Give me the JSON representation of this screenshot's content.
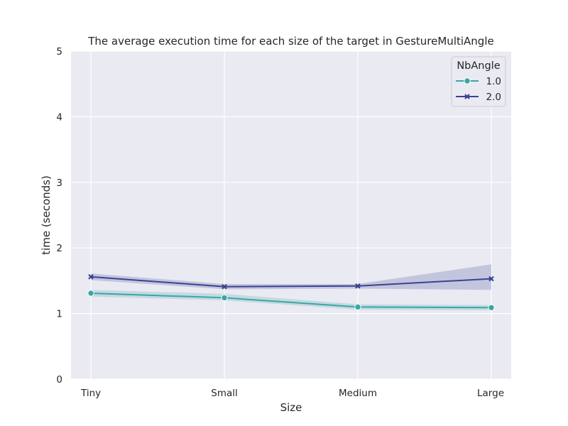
{
  "chart_data": {
    "type": "line",
    "title": "The average execution time for each size of the target in GestureMultiAngle",
    "xlabel": "Size",
    "ylabel": "time (seconds)",
    "categories": [
      "Tiny",
      "Small",
      "Medium",
      "Large"
    ],
    "ylim": [
      0,
      5
    ],
    "yticks": [
      "0",
      "1",
      "2",
      "3",
      "4",
      "5"
    ],
    "grid": true,
    "legend": {
      "title": "NbAngle",
      "placement": "top-right"
    },
    "series": [
      {
        "name": "1.0",
        "marker": "circle",
        "color": "#3ba6a4",
        "values": [
          1.31,
          1.24,
          1.1,
          1.09
        ],
        "ci_low": [
          1.26,
          1.2,
          1.06,
          1.05
        ],
        "ci_high": [
          1.36,
          1.3,
          1.14,
          1.13
        ]
      },
      {
        "name": "2.0",
        "marker": "x",
        "color": "#3b4391",
        "values": [
          1.56,
          1.41,
          1.42,
          1.53
        ],
        "ci_low": [
          1.51,
          1.37,
          1.38,
          1.36
        ],
        "ci_high": [
          1.61,
          1.45,
          1.45,
          1.75
        ]
      }
    ]
  }
}
